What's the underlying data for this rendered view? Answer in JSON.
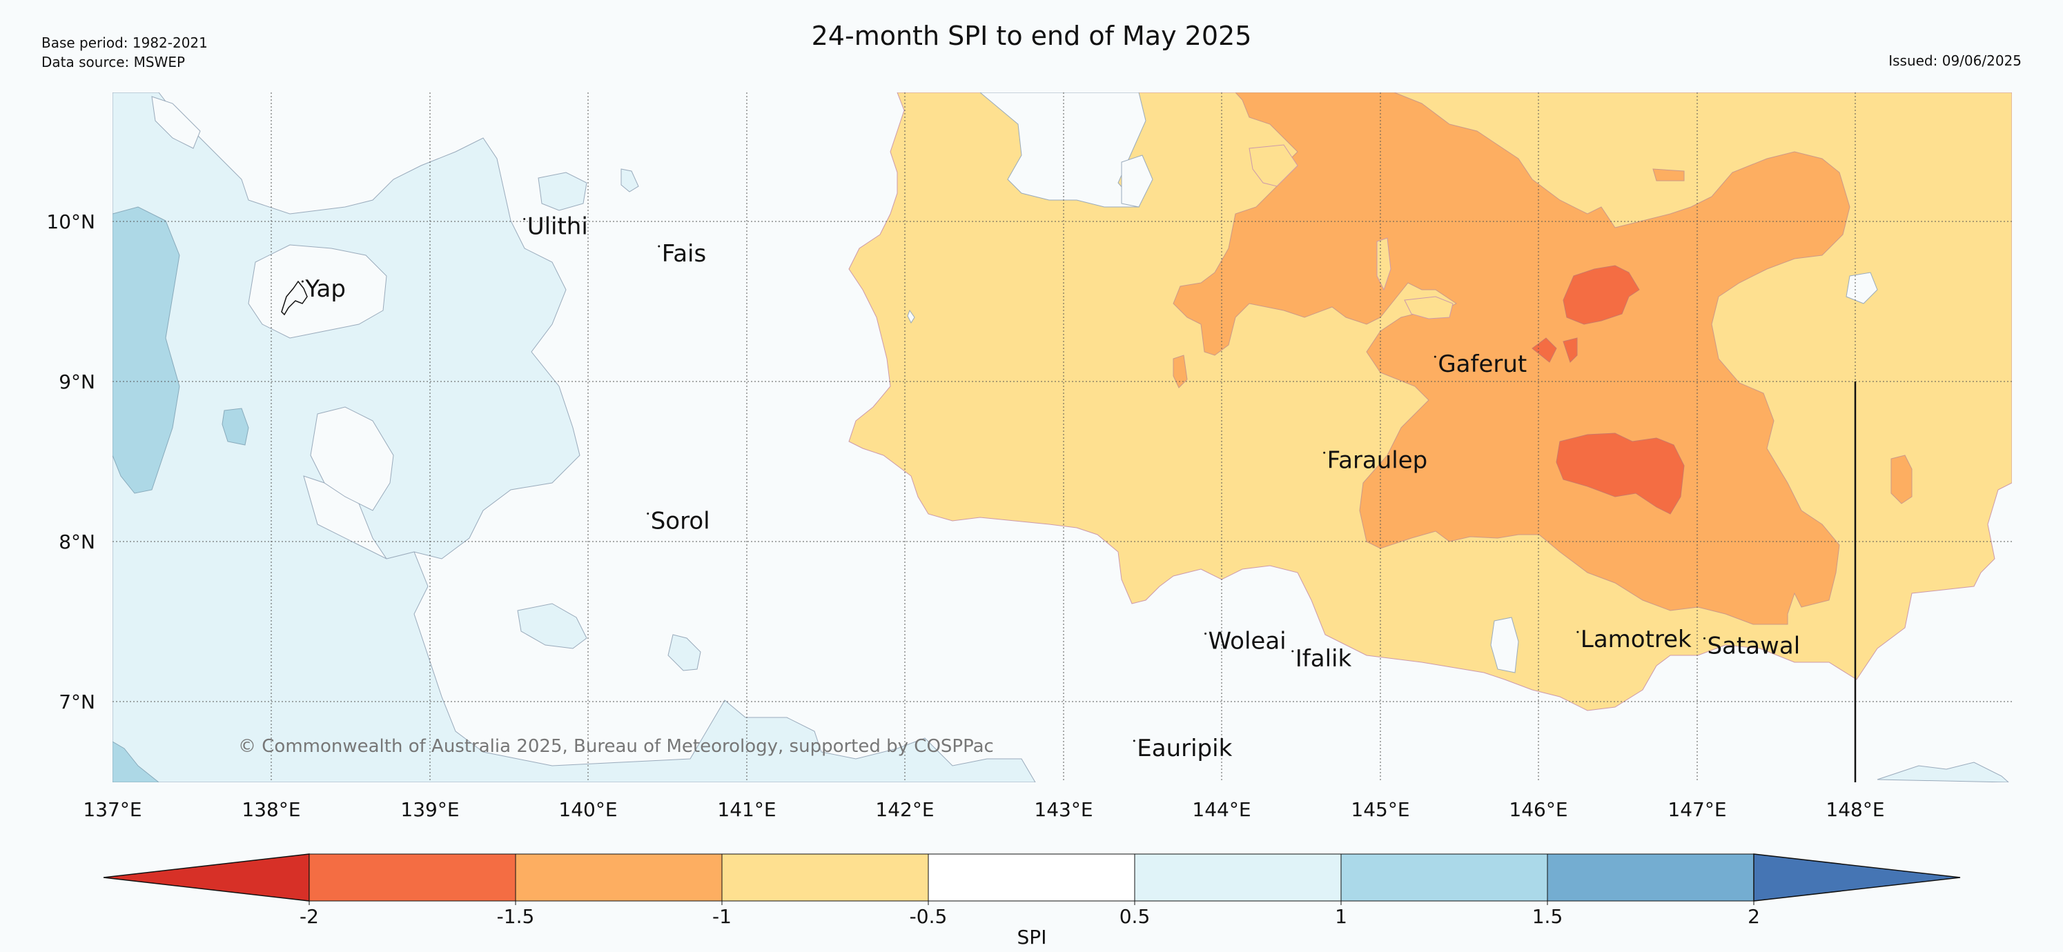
{
  "title": "24-month SPI to end of May 2025",
  "base_period": "Base period: 1982-2021",
  "data_source": "Data source: MSWEP",
  "issued": "Issued: 09/06/2025",
  "copyright": "© Commonwealth of Australia 2025, Bureau of Meteorology, supported by COSPPac",
  "lon_labels": [
    "137°E",
    "138°E",
    "139°E",
    "140°E",
    "141°E",
    "142°E",
    "143°E",
    "144°E",
    "145°E",
    "146°E",
    "147°E",
    "148°E"
  ],
  "lat_labels": [
    "10°N",
    "9°N",
    "8°N",
    "7°N"
  ],
  "places": [
    {
      "name": "Yap",
      "lon": 138.2,
      "lat": 9.53
    },
    {
      "name": "Ulithi",
      "lon": 139.6,
      "lat": 9.92
    },
    {
      "name": "Fais",
      "lon": 140.45,
      "lat": 9.75
    },
    {
      "name": "Sorol",
      "lon": 140.38,
      "lat": 8.08
    },
    {
      "name": "Gaferut",
      "lon": 145.35,
      "lat": 9.06
    },
    {
      "name": "Faraulep",
      "lon": 144.65,
      "lat": 8.46
    },
    {
      "name": "Woleai",
      "lon": 143.9,
      "lat": 7.33
    },
    {
      "name": "Ifalik",
      "lon": 144.45,
      "lat": 7.22
    },
    {
      "name": "Lamotrek",
      "lon": 146.25,
      "lat": 7.34
    },
    {
      "name": "Satawal",
      "lon": 147.05,
      "lat": 7.3
    },
    {
      "name": "Eauripik",
      "lon": 143.45,
      "lat": 6.66
    }
  ],
  "colorbar": {
    "label": "SPI",
    "tick_labels": [
      "-2",
      "-1.5",
      "-1",
      "-0.5",
      "0.5",
      "1",
      "1.5",
      "2"
    ],
    "colors": [
      "#d73027",
      "#f46d43",
      "#fdae61",
      "#fee090",
      "#ffffff",
      "#e0f3f8",
      "#abd9e9",
      "#74add1",
      "#4575b4"
    ]
  }
}
